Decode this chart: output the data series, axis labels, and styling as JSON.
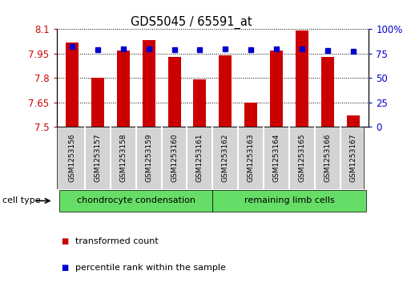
{
  "title": "GDS5045 / 65591_at",
  "samples": [
    "GSM1253156",
    "GSM1253157",
    "GSM1253158",
    "GSM1253159",
    "GSM1253160",
    "GSM1253161",
    "GSM1253162",
    "GSM1253163",
    "GSM1253164",
    "GSM1253165",
    "GSM1253166",
    "GSM1253167"
  ],
  "transformed_count": [
    8.02,
    7.8,
    7.97,
    8.03,
    7.93,
    7.79,
    7.94,
    7.65,
    7.97,
    8.09,
    7.93,
    7.57
  ],
  "percentile_rank": [
    82,
    79,
    80,
    80,
    79,
    79,
    80,
    79,
    80,
    80,
    78,
    77
  ],
  "ylim_left": [
    7.5,
    8.1
  ],
  "ylim_right": [
    0,
    100
  ],
  "yticks_left": [
    7.5,
    7.65,
    7.8,
    7.95,
    8.1
  ],
  "yticks_left_labels": [
    "7.5",
    "7.65",
    "7.8",
    "7.95",
    "8.1"
  ],
  "yticks_right": [
    0,
    25,
    50,
    75,
    100
  ],
  "yticks_right_labels": [
    "0",
    "25",
    "50",
    "75",
    "100%"
  ],
  "bar_color": "#cc0000",
  "dot_color": "#0000cc",
  "baseline": 7.5,
  "group1_label": "chondrocyte condensation",
  "group2_label": "remaining limb cells",
  "group1_count": 6,
  "group2_count": 6,
  "cell_type_label": "cell type",
  "legend1": "transformed count",
  "legend2": "percentile rank within the sample",
  "background_color": "#ffffff",
  "sample_box_color": "#d3d3d3",
  "group_bg_color": "#66dd66"
}
